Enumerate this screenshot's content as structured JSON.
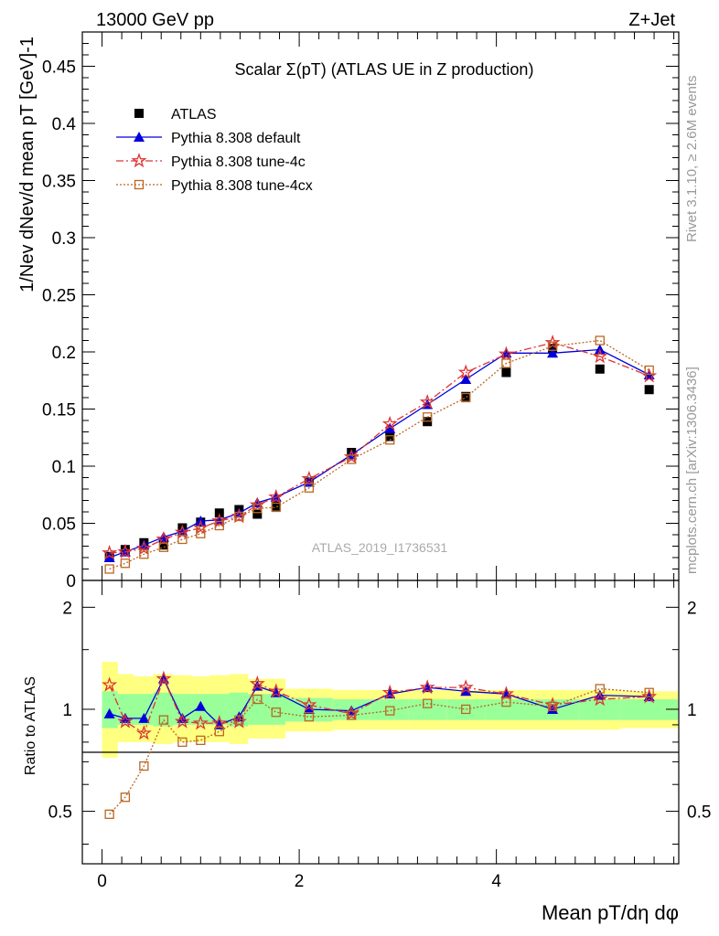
{
  "header": {
    "left": "13000 GeV pp",
    "right": "Z+Jet"
  },
  "side_labels": {
    "rivet": "Rivet 3.1.10, ≥ 2.6M events",
    "mcplots": "mcplots.cern.ch [arXiv:1306.3436]"
  },
  "watermark": "ATLAS_2019_I1736531",
  "colors": {
    "atlas": "#000000",
    "default": "#0000dd",
    "tune4c": "#dd3333",
    "tune4cx": "#bb6622",
    "band_green": "#99ff99",
    "band_yellow": "#ffff80"
  },
  "chart_data": [
    {
      "type": "scatter",
      "title": "Scalar Σ(pT) (ATLAS UE in Z production)",
      "ylabel": "1/Nev dNev/d mean pT [GeV]-1",
      "xlabel": "Mean pT/dη dφ",
      "xlim": [
        -0.2,
        5.85
      ],
      "ylim": [
        0,
        0.48
      ],
      "yticks": [
        "0",
        "0.05",
        "0.1",
        "0.15",
        "0.2",
        "0.25",
        "0.3",
        "0.35",
        "0.4",
        "0.45"
      ],
      "legend_position": "top-left",
      "x": [
        0.075,
        0.235,
        0.425,
        0.625,
        0.815,
        1.0,
        1.19,
        1.39,
        1.575,
        1.765,
        2.1,
        2.53,
        2.92,
        3.3,
        3.69,
        4.1,
        4.57,
        5.05,
        5.55
      ],
      "series": [
        {
          "name": "ATLAS",
          "marker": "square",
          "values": [
            0.021,
            0.027,
            0.033,
            0.031,
            0.046,
            0.051,
            0.059,
            0.062,
            0.058,
            0.065,
            0.086,
            0.112,
            0.126,
            0.139,
            0.161,
            0.182,
            0.203,
            0.185,
            0.167
          ]
        },
        {
          "name": "Pythia 8.308 default",
          "marker": "triangle",
          "values": [
            0.02,
            0.025,
            0.031,
            0.038,
            0.043,
            0.052,
            0.053,
            0.059,
            0.068,
            0.073,
            0.086,
            0.11,
            0.133,
            0.154,
            0.176,
            0.199,
            0.199,
            0.202,
            0.18
          ]
        },
        {
          "name": "Pythia 8.308 tune-4c",
          "marker": "star",
          "values": [
            0.024,
            0.025,
            0.028,
            0.036,
            0.042,
            0.046,
            0.052,
            0.056,
            0.066,
            0.073,
            0.089,
            0.108,
            0.137,
            0.156,
            0.182,
            0.198,
            0.208,
            0.196,
            0.179
          ]
        },
        {
          "name": "Pythia 8.308 tune-4cx",
          "marker": "open-square",
          "values": [
            0.01,
            0.015,
            0.023,
            0.029,
            0.036,
            0.041,
            0.048,
            0.056,
            0.063,
            0.064,
            0.081,
            0.106,
            0.123,
            0.143,
            0.16,
            0.19,
            0.205,
            0.21,
            0.184
          ]
        }
      ]
    },
    {
      "type": "line",
      "ylabel": "Ratio to ATLAS",
      "xlabel": "Mean pT/dη dφ",
      "xlim": [
        -0.2,
        5.85
      ],
      "ylim": [
        0.35,
        2.4
      ],
      "yscale": "log",
      "yticks": [
        "0.5",
        "1",
        "2"
      ],
      "xticks": [
        "0",
        "2",
        "4"
      ],
      "x": [
        0.075,
        0.235,
        0.425,
        0.625,
        0.815,
        1.0,
        1.19,
        1.39,
        1.575,
        1.765,
        2.1,
        2.53,
        2.92,
        3.3,
        3.69,
        4.1,
        4.57,
        5.05,
        5.55
      ],
      "bin_edges": [
        0.0,
        0.16,
        0.32,
        0.52,
        0.72,
        0.91,
        1.09,
        1.29,
        1.48,
        1.67,
        1.86,
        2.34,
        2.72,
        3.11,
        3.5,
        3.89,
        4.3,
        4.84,
        5.26,
        5.84
      ],
      "bands": {
        "green_low": [
          0.88,
          0.9,
          0.9,
          0.89,
          0.9,
          0.9,
          0.9,
          0.89,
          0.9,
          0.9,
          0.92,
          0.93,
          0.93,
          0.93,
          0.93,
          0.93,
          0.93,
          0.93,
          0.93
        ],
        "green_high": [
          1.13,
          1.11,
          1.11,
          1.12,
          1.11,
          1.11,
          1.11,
          1.12,
          1.11,
          1.11,
          1.08,
          1.07,
          1.07,
          1.07,
          1.07,
          1.07,
          1.07,
          1.07,
          1.07
        ],
        "yellow_low": [
          0.72,
          0.8,
          0.8,
          0.79,
          0.8,
          0.8,
          0.8,
          0.79,
          0.82,
          0.82,
          0.86,
          0.87,
          0.87,
          0.87,
          0.87,
          0.87,
          0.87,
          0.87,
          0.88
        ],
        "yellow_high": [
          1.38,
          1.27,
          1.25,
          1.27,
          1.26,
          1.25,
          1.26,
          1.27,
          1.23,
          1.23,
          1.15,
          1.14,
          1.14,
          1.14,
          1.14,
          1.14,
          1.14,
          1.14,
          1.13
        ]
      },
      "series": [
        {
          "name": "Pythia 8.308 default",
          "values": [
            0.97,
            0.94,
            0.94,
            1.23,
            0.94,
            1.02,
            0.9,
            0.95,
            1.17,
            1.12,
            1.0,
            0.99,
            1.11,
            1.16,
            1.13,
            1.11,
            1.0,
            1.1,
            1.09
          ]
        },
        {
          "name": "Pythia 8.308 tune-4c",
          "values": [
            1.18,
            0.92,
            0.85,
            1.23,
            0.92,
            0.91,
            0.91,
            0.92,
            1.19,
            1.13,
            1.03,
            0.97,
            1.12,
            1.16,
            1.16,
            1.11,
            1.03,
            1.07,
            1.09
          ]
        },
        {
          "name": "Pythia 8.308 tune-4cx",
          "values": [
            0.49,
            0.55,
            0.68,
            0.93,
            0.8,
            0.81,
            0.86,
            0.93,
            1.07,
            0.98,
            0.95,
            0.96,
            0.99,
            1.04,
            1.0,
            1.05,
            1.02,
            1.15,
            1.12
          ]
        }
      ]
    }
  ]
}
